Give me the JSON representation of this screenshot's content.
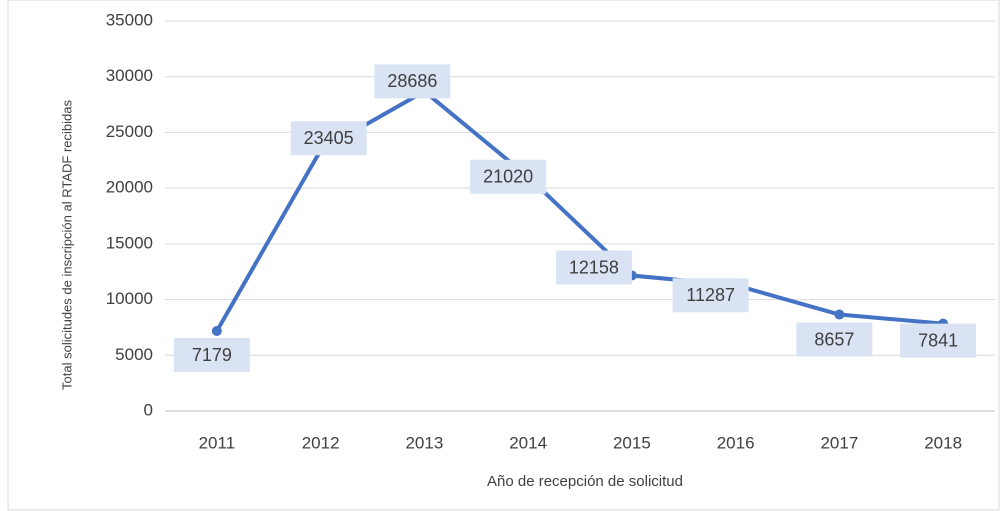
{
  "chart_data": {
    "type": "line",
    "x_label": "Año de recepción de solicitud",
    "y_label": "Total  solicitudes de inscripción al RTADF recibidas",
    "categories": [
      "2011",
      "2012",
      "2013",
      "2014",
      "2015",
      "2016",
      "2017",
      "2018"
    ],
    "series": [
      {
        "name": "Total",
        "color": "#4472c4",
        "values": [
          7179,
          23405,
          28686,
          21020,
          12158,
          11287,
          8657,
          7841
        ]
      }
    ],
    "ylim": [
      0,
      35000
    ],
    "yticks": [
      0,
      5000,
      10000,
      15000,
      20000,
      25000,
      30000,
      35000
    ],
    "grid": true,
    "legend": false
  }
}
